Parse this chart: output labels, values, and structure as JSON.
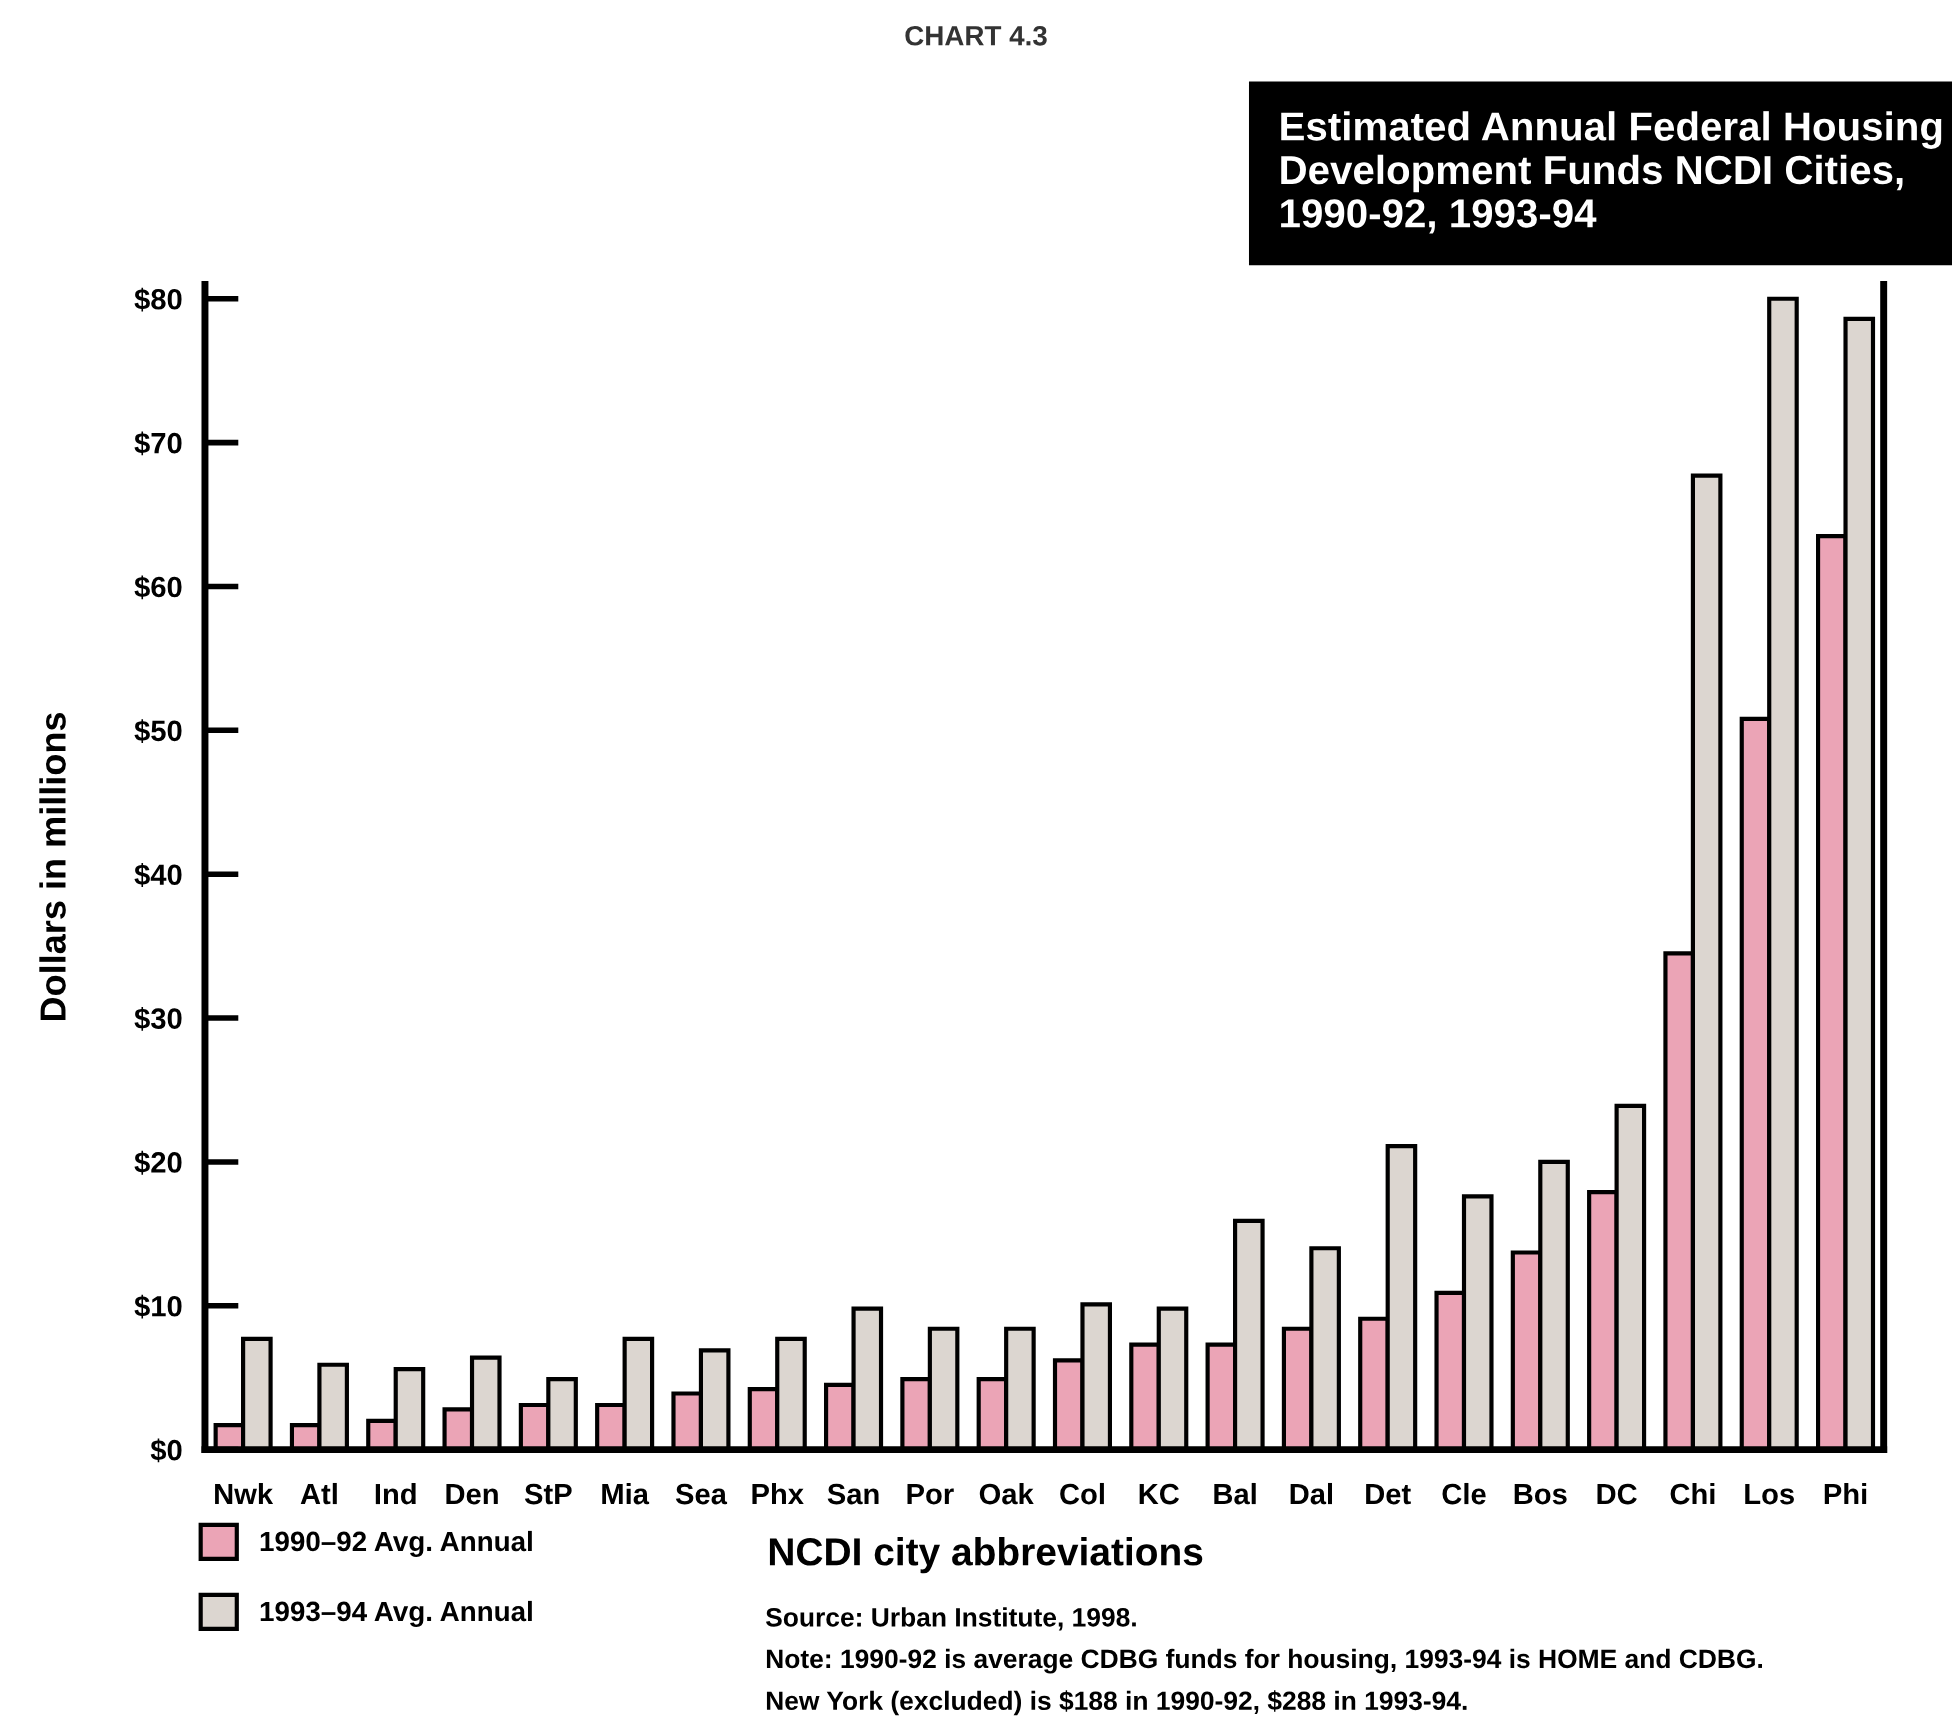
{
  "chart_data": {
    "type": "bar",
    "title": "Estimated Annual Federal Housing Development Funds NCDI Cities, 1990-92, 1993-94",
    "xlabel": "NCDI city abbreviations",
    "ylabel": "Dollars in millions",
    "categories": [
      "Nwk",
      "Atl",
      "Ind",
      "Den",
      "StP",
      "Mia",
      "Sea",
      "Phx",
      "San",
      "Por",
      "Oak",
      "Col",
      "KC",
      "Bal",
      "Dal",
      "Det",
      "Cle",
      "Bos",
      "DC",
      "Chi",
      "Los",
      "Phi"
    ],
    "series": [
      {
        "name": "1990–92 Avg. Annual",
        "color": "#eba4b6",
        "values": [
          1.7,
          1.7,
          2.0,
          2.8,
          3.1,
          3.1,
          3.9,
          4.2,
          4.5,
          4.9,
          4.9,
          6.2,
          7.3,
          7.3,
          8.4,
          9.1,
          10.9,
          13.7,
          17.9,
          34.5,
          50.8,
          63.5
        ]
      },
      {
        "name": "1993–94 Avg. Annual",
        "color": "#dcd6d0",
        "values": [
          7.7,
          5.9,
          5.6,
          6.4,
          4.9,
          7.7,
          6.9,
          7.7,
          9.8,
          8.4,
          8.4,
          10.1,
          9.8,
          15.9,
          14.0,
          21.1,
          17.6,
          20.0,
          23.9,
          67.7,
          80.0,
          78.6
        ]
      }
    ],
    "ylim": [
      0,
      81
    ],
    "yticks": [
      {
        "value": 0,
        "label": "$0"
      },
      {
        "value": 10,
        "label": "$10"
      },
      {
        "value": 20,
        "label": "$20"
      },
      {
        "value": 30,
        "label": "$30"
      },
      {
        "value": 40,
        "label": "$40"
      },
      {
        "value": 50,
        "label": "$50"
      },
      {
        "value": 60,
        "label": "$60"
      },
      {
        "value": 70,
        "label": "$70"
      },
      {
        "value": 80,
        "label": "$80"
      }
    ],
    "grid": false,
    "legend": "bottom left",
    "annotations": [
      "CHART 4.3",
      "Source: Urban Institute, 1998.",
      "Note: 1990-92 is average CDBG funds for housing, 1993-94 is HOME and CDBG.",
      "New York (excluded) is $188 in 1990-92, $288 in 1993-94."
    ]
  }
}
